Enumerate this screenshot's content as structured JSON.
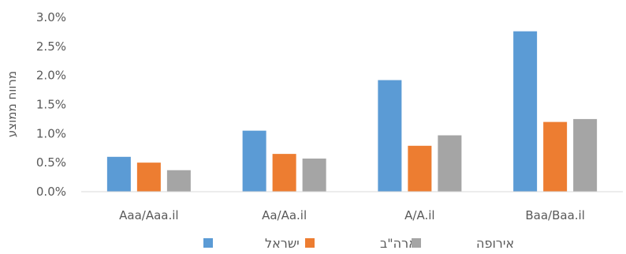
{
  "chart_data": {
    "type": "bar",
    "title": "",
    "xlabel": "",
    "ylabel": "מרווח ממוצע",
    "ylim": [
      0,
      0.03
    ],
    "yticks": [
      "0.0%",
      "0.5%",
      "1.0%",
      "1.5%",
      "2.0%",
      "2.5%",
      "3.0%"
    ],
    "categories": [
      "Aaa/Aaa.il",
      "Aa/Aa.il",
      "A/A.il",
      "Baa/Baa.il"
    ],
    "series": [
      {
        "name": "ישראל",
        "color": "#5B9BD5",
        "values": [
          0.006,
          0.0105,
          0.0192,
          0.0276
        ]
      },
      {
        "name": "ארה\"ב",
        "color": "#ED7D31",
        "values": [
          0.005,
          0.0065,
          0.0079,
          0.012
        ]
      },
      {
        "name": "אירופה",
        "color": "#A5A5A5",
        "values": [
          0.0037,
          0.0057,
          0.0097,
          0.0125
        ]
      }
    ],
    "grid": false,
    "legend": "bottom"
  }
}
